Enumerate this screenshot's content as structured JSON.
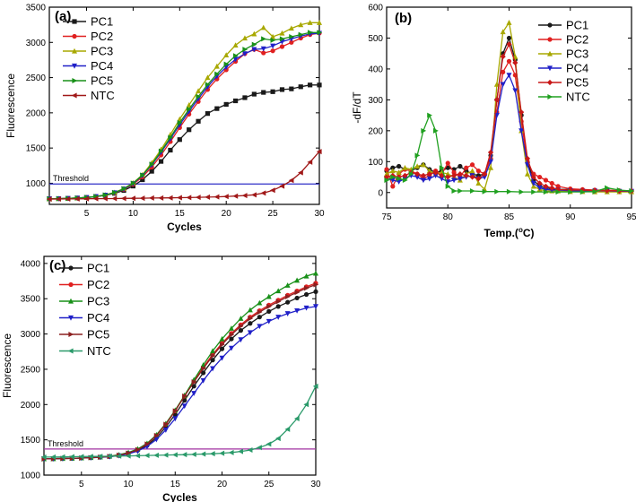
{
  "chart_data": [
    {
      "type": "line",
      "panel_label": "(a)",
      "xlabel": "Cycles",
      "ylabel": "Fluorescence",
      "xlim": [
        1,
        30
      ],
      "ylim": [
        700,
        3500
      ],
      "xticks": [
        5,
        10,
        15,
        20,
        25,
        30
      ],
      "yticks": [
        1000,
        1500,
        2000,
        2500,
        3000,
        3500
      ],
      "threshold": {
        "label": "Threshold",
        "value": 990,
        "color": "#3030c8"
      },
      "series": [
        {
          "name": "PC1",
          "color": "#1a1a1a",
          "marker": "square",
          "values": [
            780,
            782,
            785,
            790,
            798,
            810,
            828,
            856,
            898,
            960,
            1050,
            1170,
            1310,
            1470,
            1620,
            1760,
            1880,
            1990,
            2060,
            2120,
            2170,
            2215,
            2265,
            2290,
            2300,
            2330,
            2340,
            2370,
            2395,
            2395
          ]
        },
        {
          "name": "PC2",
          "color": "#e02020",
          "marker": "circle",
          "values": [
            780,
            782,
            785,
            790,
            798,
            810,
            830,
            862,
            912,
            985,
            1090,
            1230,
            1400,
            1590,
            1790,
            1980,
            2160,
            2330,
            2480,
            2610,
            2730,
            2840,
            2900,
            2850,
            2880,
            2940,
            3000,
            3060,
            3110,
            3130
          ]
        },
        {
          "name": "PC3",
          "color": "#a8a800",
          "marker": "triangle-up",
          "values": [
            780,
            782,
            785,
            790,
            798,
            812,
            835,
            870,
            925,
            1005,
            1120,
            1290,
            1480,
            1690,
            1910,
            2110,
            2310,
            2500,
            2660,
            2820,
            2960,
            3060,
            3120,
            3210,
            3080,
            3130,
            3200,
            3250,
            3280,
            3280
          ]
        },
        {
          "name": "PC4",
          "color": "#2020c8",
          "marker": "triangle-down",
          "values": [
            780,
            782,
            785,
            790,
            798,
            811,
            832,
            866,
            918,
            995,
            1110,
            1260,
            1440,
            1630,
            1830,
            2020,
            2200,
            2370,
            2520,
            2650,
            2760,
            2840,
            2900,
            2910,
            2950,
            3010,
            3050,
            3090,
            3120,
            3130
          ]
        },
        {
          "name": "PC5",
          "color": "#189018",
          "marker": "triangle-right",
          "values": [
            780,
            782,
            785,
            790,
            798,
            812,
            834,
            868,
            922,
            1000,
            1115,
            1270,
            1455,
            1650,
            1860,
            2050,
            2230,
            2400,
            2550,
            2690,
            2810,
            2900,
            2970,
            3050,
            3030,
            3050,
            3080,
            3110,
            3140,
            3140
          ]
        },
        {
          "name": "NTC",
          "color": "#a01818",
          "marker": "triangle-left",
          "values": [
            775,
            776,
            777,
            778,
            780,
            781,
            782,
            783,
            785,
            786,
            788,
            790,
            791,
            793,
            795,
            797,
            800,
            803,
            807,
            812,
            818,
            826,
            836,
            860,
            900,
            960,
            1040,
            1150,
            1300,
            1450
          ]
        }
      ]
    },
    {
      "type": "line",
      "panel_label": "(b)",
      "xlabel": "Temp.(",
      "xlabel_sup": "o",
      "xlabel_end": "C)",
      "ylabel": "-dF/dT",
      "xlim": [
        75,
        95
      ],
      "ylim": [
        -50,
        600
      ],
      "xticks": [
        75,
        80,
        85,
        90,
        95
      ],
      "yticks": [
        0,
        100,
        200,
        300,
        400,
        500,
        600
      ],
      "series": [
        {
          "name": "PC1",
          "color": "#1a1a1a",
          "marker": "circle",
          "x": [
            75,
            75.5,
            76,
            76.5,
            77,
            77.5,
            78,
            78.5,
            79,
            79.5,
            80,
            80.5,
            81,
            81.5,
            82,
            82.5,
            83,
            83.5,
            84,
            84.5,
            85,
            85.5,
            86,
            86.5,
            87,
            87.5,
            88,
            88.5,
            89,
            90,
            91,
            92,
            93,
            94,
            95
          ],
          "y": [
            70,
            80,
            85,
            75,
            70,
            80,
            90,
            75,
            65,
            70,
            80,
            75,
            85,
            70,
            60,
            55,
            60,
            120,
            300,
            450,
            500,
            430,
            250,
            100,
            40,
            20,
            15,
            12,
            10,
            10,
            8,
            8,
            5,
            5,
            5
          ]
        },
        {
          "name": "PC2",
          "color": "#e02020",
          "marker": "circle",
          "x": [
            75,
            75.5,
            76,
            76.5,
            77,
            77.5,
            78,
            78.5,
            79,
            79.5,
            80,
            80.5,
            81,
            81.5,
            82,
            82.5,
            83,
            83.5,
            84,
            84.5,
            85,
            85.5,
            86,
            86.5,
            87,
            87.5,
            88,
            88.5,
            89,
            90,
            91,
            92,
            93,
            94,
            95
          ],
          "y": [
            75,
            20,
            60,
            75,
            70,
            60,
            45,
            55,
            70,
            60,
            95,
            65,
            50,
            80,
            90,
            70,
            60,
            110,
            260,
            390,
            425,
            380,
            230,
            100,
            60,
            50,
            40,
            30,
            20,
            12,
            10,
            8,
            8,
            6,
            5
          ]
        },
        {
          "name": "PC3",
          "color": "#a8a800",
          "marker": "triangle-up",
          "x": [
            75,
            75.5,
            76,
            76.5,
            77,
            77.5,
            78,
            78.5,
            79,
            79.5,
            80,
            80.5,
            81,
            81.5,
            82,
            82.5,
            83,
            83.5,
            84,
            84.5,
            85,
            85.5,
            86,
            86.5,
            87,
            87.5,
            88,
            88.5,
            89,
            90,
            91,
            92,
            93,
            94,
            95
          ],
          "y": [
            60,
            70,
            65,
            80,
            75,
            85,
            90,
            70,
            60,
            65,
            60,
            50,
            40,
            60,
            70,
            30,
            10,
            80,
            350,
            520,
            550,
            440,
            200,
            60,
            20,
            10,
            5,
            5,
            5,
            3,
            3,
            2,
            2,
            2,
            2
          ]
        },
        {
          "name": "PC4",
          "color": "#2020c8",
          "marker": "triangle-down",
          "x": [
            75,
            75.5,
            76,
            76.5,
            77,
            77.5,
            78,
            78.5,
            79,
            79.5,
            80,
            80.5,
            81,
            81.5,
            82,
            82.5,
            83,
            83.5,
            84,
            84.5,
            85,
            85.5,
            86,
            86.5,
            87,
            87.5,
            88,
            88.5,
            89,
            90,
            91,
            92,
            93,
            94,
            95
          ],
          "y": [
            45,
            40,
            35,
            45,
            55,
            50,
            40,
            45,
            55,
            45,
            35,
            40,
            45,
            50,
            55,
            45,
            50,
            100,
            250,
            350,
            380,
            330,
            200,
            90,
            30,
            15,
            10,
            8,
            8,
            6,
            5,
            5,
            5,
            4,
            4
          ]
        },
        {
          "name": "PC5",
          "color": "#c81818",
          "marker": "diamond",
          "x": [
            75,
            75.5,
            76,
            76.5,
            77,
            77.5,
            78,
            78.5,
            79,
            79.5,
            80,
            80.5,
            81,
            81.5,
            82,
            82.5,
            83,
            83.5,
            84,
            84.5,
            85,
            85.5,
            86,
            86.5,
            87,
            87.5,
            88,
            88.5,
            89,
            90,
            91,
            92,
            93,
            94,
            95
          ],
          "y": [
            50,
            55,
            50,
            55,
            65,
            60,
            55,
            60,
            65,
            55,
            50,
            55,
            60,
            55,
            50,
            45,
            60,
            130,
            300,
            440,
            480,
            420,
            260,
            110,
            50,
            30,
            20,
            15,
            10,
            8,
            8,
            6,
            6,
            5,
            5
          ]
        },
        {
          "name": "NTC",
          "color": "#20a020",
          "marker": "triangle-right",
          "x": [
            75,
            75.5,
            76,
            76.5,
            77,
            77.5,
            78,
            78.5,
            79,
            79.5,
            80,
            80.5,
            81,
            82,
            83,
            84,
            85,
            86,
            87,
            88,
            89,
            90,
            91,
            92,
            93,
            94,
            95
          ],
          "y": [
            40,
            50,
            45,
            40,
            60,
            120,
            200,
            250,
            200,
            80,
            20,
            5,
            5,
            5,
            3,
            3,
            3,
            2,
            2,
            2,
            2,
            2,
            2,
            3,
            15,
            8,
            5
          ]
        }
      ]
    },
    {
      "type": "line",
      "panel_label": "(c)",
      "xlabel": "Cycles",
      "ylabel": "Fluorescence",
      "xlim": [
        1,
        30
      ],
      "ylim": [
        1000,
        4100
      ],
      "xticks": [
        5,
        10,
        15,
        20,
        25,
        30
      ],
      "yticks": [
        1000,
        1500,
        2000,
        2500,
        3000,
        3500,
        4000
      ],
      "threshold": {
        "label": "Threshold",
        "value": 1370,
        "color": "#a030a0"
      },
      "series": [
        {
          "name": "PC1",
          "color": "#1a1a1a",
          "marker": "circle",
          "values": [
            1230,
            1232,
            1235,
            1238,
            1242,
            1247,
            1253,
            1262,
            1278,
            1305,
            1350,
            1420,
            1530,
            1680,
            1860,
            2060,
            2260,
            2450,
            2630,
            2790,
            2930,
            3050,
            3150,
            3240,
            3320,
            3390,
            3450,
            3510,
            3560,
            3600
          ]
        },
        {
          "name": "PC2",
          "color": "#e02020",
          "marker": "circle",
          "values": [
            1230,
            1232,
            1235,
            1238,
            1242,
            1247,
            1254,
            1264,
            1282,
            1312,
            1360,
            1440,
            1560,
            1720,
            1910,
            2120,
            2330,
            2530,
            2710,
            2870,
            3010,
            3130,
            3240,
            3330,
            3410,
            3480,
            3550,
            3610,
            3670,
            3720
          ]
        },
        {
          "name": "PC3",
          "color": "#189018",
          "marker": "triangle-up",
          "values": [
            1230,
            1232,
            1235,
            1238,
            1242,
            1248,
            1256,
            1268,
            1288,
            1320,
            1370,
            1450,
            1570,
            1730,
            1920,
            2130,
            2350,
            2560,
            2760,
            2930,
            3080,
            3220,
            3340,
            3440,
            3530,
            3610,
            3690,
            3760,
            3820,
            3860
          ]
        },
        {
          "name": "PC4",
          "color": "#2020c8",
          "marker": "triangle-down",
          "values": [
            1230,
            1232,
            1235,
            1238,
            1242,
            1246,
            1252,
            1260,
            1275,
            1300,
            1340,
            1405,
            1505,
            1640,
            1800,
            1980,
            2160,
            2340,
            2510,
            2660,
            2800,
            2920,
            3020,
            3110,
            3180,
            3240,
            3290,
            3330,
            3370,
            3390
          ]
        },
        {
          "name": "PC5",
          "color": "#8c2020",
          "marker": "triangle-right",
          "values": [
            1230,
            1232,
            1235,
            1238,
            1242,
            1247,
            1254,
            1264,
            1282,
            1312,
            1360,
            1440,
            1560,
            1720,
            1910,
            2120,
            2320,
            2510,
            2690,
            2850,
            2990,
            3110,
            3220,
            3310,
            3390,
            3460,
            3530,
            3590,
            3650,
            3700
          ]
        },
        {
          "name": "NTC",
          "color": "#2a9a6a",
          "marker": "triangle-left",
          "values": [
            1255,
            1256,
            1258,
            1260,
            1262,
            1264,
            1266,
            1268,
            1270,
            1272,
            1275,
            1278,
            1281,
            1284,
            1287,
            1290,
            1294,
            1298,
            1303,
            1310,
            1320,
            1335,
            1355,
            1390,
            1440,
            1520,
            1650,
            1800,
            2000,
            2260
          ]
        }
      ]
    }
  ]
}
